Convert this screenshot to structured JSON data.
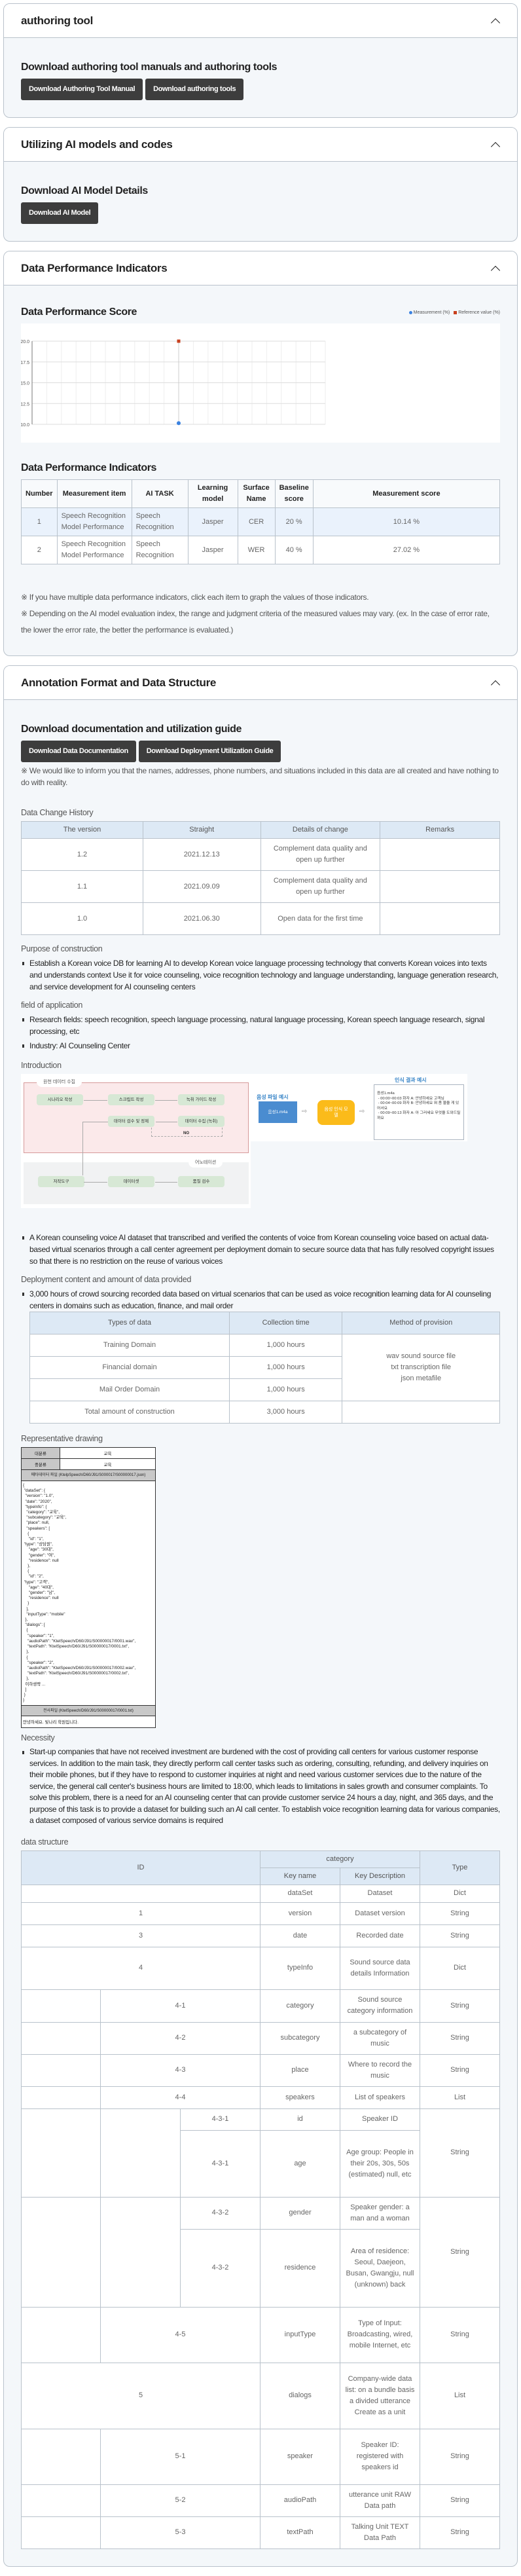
{
  "authoring": {
    "title": "authoring tool",
    "heading": "Download authoring tool manuals and authoring tools",
    "btn_manual": "Download Authoring Tool Manual",
    "btn_tools": "Download authoring tools"
  },
  "ai_models": {
    "title": "Utilizing AI models and codes",
    "heading": "Download AI Model Details",
    "btn_model": "Download AI Model"
  },
  "performance": {
    "title": "Data Performance Indicators",
    "score_heading": "Data Performance Score",
    "legend": {
      "measurement": "Measurement (%)",
      "reference": "Reference value (%)"
    },
    "table_heading": "Data Performance Indicators",
    "columns": [
      "Number",
      "Measurement item",
      "AI TASK",
      "Learning model",
      "Surface Name",
      "Baseline score",
      "Measurement score"
    ],
    "rows": [
      {
        "number": "1",
        "item": "Speech Recognition Model Performance",
        "task": "Speech Recognition",
        "model": "Jasper",
        "surface": "CER",
        "baseline": "20 %",
        "measured": "10.14 %"
      },
      {
        "number": "2",
        "item": "Speech Recognition Model Performance",
        "task": "Speech Recognition",
        "model": "Jasper",
        "surface": "WER",
        "baseline": "40 %",
        "measured": "27.02 %"
      }
    ],
    "note1": "※ If you have multiple data performance indicators, click each item to graph the values of those indicators.",
    "note2": "※ Depending on the AI model evaluation index, the range and judgment criteria of the measured values may vary. (ex. In the case of error rate, the lower the error rate, the better the performance is evaluated.)"
  },
  "chart_data": {
    "type": "scatter",
    "title": "Data Performance Score",
    "series": [
      {
        "name": "Measurement (%)",
        "values": [
          10.14
        ],
        "color": "#3b82e0",
        "marker": "circle"
      },
      {
        "name": "Reference value (%)",
        "values": [
          20
        ],
        "color": "#c8401e",
        "marker": "square"
      }
    ],
    "ylim": [
      10,
      20
    ],
    "yticks": [
      "20.0",
      "17.5",
      "15.0",
      "12.5",
      "10.0"
    ],
    "grid": true,
    "legend": "top-right"
  },
  "annotation": {
    "title": "Annotation Format and Data Structure",
    "heading": "Download documentation and utilization guide",
    "btn_doc": "Download Data Documentation",
    "btn_guide": "Download Deployment Utilization Guide",
    "disclaimer": "※ We would like to inform you that the names, addresses, phone numbers, and situations included in this data are all created and have nothing to do with reality.",
    "history_label": "Data Change History",
    "history_columns": [
      "The version",
      "Straight",
      "Details of change",
      "Remarks"
    ],
    "history": [
      {
        "version": "1.2",
        "date": "2021.12.13",
        "details": "Complement data quality and open up further",
        "remarks": ""
      },
      {
        "version": "1.1",
        "date": "2021.09.09",
        "details": "Complement data quality and open up further",
        "remarks": ""
      },
      {
        "version": "1.0",
        "date": "2021.06.30",
        "details": "Open data for the first time",
        "remarks": ""
      }
    ],
    "purpose_label": "Purpose of construction",
    "purpose": [
      "Establish a Korean voice DB for learning AI to develop Korean voice language processing technology that converts Korean voices into texts and understands context Use it for voice counseling, voice recognition technology and language understanding, language generation research, and service development for AI counseling centers"
    ],
    "application_label": "field of application",
    "application": [
      "Research fields: speech recognition, speech language processing, natural language processing, Korean speech language research, signal processing, etc",
      "Industry: AI Counseling Center"
    ],
    "intro_label": "Introduction",
    "diagram": {
      "zone1": "원천 데이터 수집",
      "zone2": "어노테이션",
      "steps": [
        "시나리오 작성",
        "스크립트 작성",
        "녹취 가이드 작성",
        "데이터 수집 (녹취)",
        "데이터 검수 및 정제",
        "저작도구",
        "데이터셋",
        "품질 검수"
      ],
      "no": "NO",
      "file_title": "음성 파일 예시",
      "file": "음성1.m4a",
      "model": "음성 인식 모델",
      "result_title": "인식 결과 예시",
      "result": "음성1.m4a\n - 00:00~00:03 화자 A: 안녕하세요 고객님\n - 00:04~00:09 화자 B: 안녕하세요 뭐 좀 물을 게 있어서요\n - 00:09~00:13 화자 A: 아 그러세요 무엇을 도와드릴까요"
    },
    "intro": [
      "A Korean counseling voice AI dataset that transcribed and verified the contents of voice from Korean counseling voice based on actual data-based virtual scenarios through a call center agreement per deployment domain to secure source data that has fully resolved copyright issues so that there is no restriction on the reuse of various voices"
    ],
    "deploy_label": "Deployment content and amount of data provided",
    "deploy": [
      "3,000 hours of crowd sourcing recorded data based on virtual scenarios that can be used as voice recognition learning data for AI counseling centers in domains such as education, finance, and mail order"
    ],
    "deploy_columns": [
      "Types of data",
      "Collection time",
      "Method of provision"
    ],
    "deploy_rows": [
      {
        "type": "Training Domain",
        "time": "1,000 hours"
      },
      {
        "type": "Financial domain",
        "time": "1,000 hours"
      },
      {
        "type": "Mail Order Domain",
        "time": "1,000 hours"
      },
      {
        "type": "Total amount of construction",
        "time": "3,000 hours"
      }
    ],
    "deploy_method": [
      "wav sound source file",
      "txt transcription file",
      "json metafile"
    ],
    "drawing_label": "Representative drawing",
    "drawing": {
      "k1": "대분류",
      "v1": "교육",
      "k2": "중분류",
      "v2": "교육",
      "meta_header": "메타데이터 파일 (KtelpSpeech/D60/J91/S000017/S00000017.json)",
      "json": "{\n \"dataSet\": {\n  \"version\": \"1.0\",\n  \"date\": \"2020\",\n  \"typeInfo\": {\n   \"category\": \"교육\",\n   \"subcategory\": \"교육\",\n   \"place\": null,\n   \"speakers\": [\n    {\n     \"id\": \"1\",\n \"type\": \"상담원\",\n     \"age\": \"30대\",\n     \"gender\": \"여\",\n     \"residence\": null\n    },\n    {\n     \"id\": \"2\",\n \"type\": \"고객\",\n     \"age\": \"40대\",\n     \"gender\": \"남\",\n     \"residence\": null\n    }\n   ],\n   \"inputType\": \"mobile\"\n  },\n  \"dialogs\": [\n   {\n    \"speaker\": \"1\",\n    \"audioPath\": \"KtelSpeech/D60/J91/S00000017/0001.wav\",\n    \"textPath\": \"KtelSpeech/D60/J91/S00000017/0001.txt\",\n   },\n   {\n    \"speaker\": \"2\",\n    \"audioPath\": \"KtelSpeech/D60/J91/S00000017/0002.wav\",\n    \"textPath\": \"KtelSpeech/D60/J91/S00000017/0002.txt\",\n   },\n  이하생략 ...\n  ]\n }\n}",
      "txt_header": "전사파일 (KtelSpeech/D60/J91/S00000017/0001.txt)",
      "txt": "안녕하세요. 빛나리 학원입니다."
    },
    "necessity_label": "Necessity",
    "necessity": [
      "Start-up companies that have not received investment are burdened with the cost of providing call centers for various customer response services. In addition to the main task, they directly perform call center tasks such as ordering, consulting, refunding, and delivery inquiries on their mobile phones, but if they have to respond to customer inquiries at night and need various customer services due to the nature of the service, the general call center's business hours are limited to 18:00, which leads to limitations in sales growth and consumer complaints. To solve this problem, there is a need for an AI counseling center that can provide customer service 24 hours a day, night, and 365 days, and the purpose of this task is to provide a dataset for building such an AI call center. To establish voice recognition learning data for various companies, a dataset composed of various service domains is required"
    ],
    "structure_label": "data structure",
    "structure_header": {
      "id": "ID",
      "category": "category",
      "key": "Key name",
      "desc": "Key Description",
      "type": "Type"
    },
    "structure": [
      {
        "id": "",
        "key": "dataSet",
        "desc": "Dataset",
        "type": "Dict"
      },
      {
        "id": "1",
        "key": "version",
        "desc": "Dataset version",
        "type": "String"
      },
      {
        "id": "3",
        "key": "date",
        "desc": "Recorded date",
        "type": "String"
      },
      {
        "id": "4",
        "key": "typeInfo",
        "desc": "Sound source data details Information",
        "type": "Dict"
      },
      {
        "id": "4-1",
        "key": "category",
        "desc": "Sound source category information",
        "type": "String"
      },
      {
        "id": "4-2",
        "key": "subcategory",
        "desc": "a subcategory of music",
        "type": "String"
      },
      {
        "id": "4-3",
        "key": "place",
        "desc": "Where to record the music",
        "type": "String"
      },
      {
        "id": "4-4",
        "key": "speakers",
        "desc": "List of speakers",
        "type": "List"
      },
      {
        "id": "4-3-1",
        "key": "id",
        "desc": "Speaker ID",
        "type": "String"
      },
      {
        "id": "4-3-1",
        "key": "age",
        "desc": "Age group: People in their 20s, 30s, 50s (estimated) null, etc"
      },
      {
        "id": "4-3-2",
        "key": "gender",
        "desc": "Speaker gender: a man and a woman",
        "type": "String"
      },
      {
        "id": "4-3-2",
        "key": "residence",
        "desc": "Area of residence: Seoul, Daejeon, Busan, Gwangju, null (unknown) back"
      },
      {
        "id": "4-5",
        "key": "inputType",
        "desc": "Type of Input: Broadcasting, wired, mobile Internet, etc",
        "type": "String"
      },
      {
        "id": "5",
        "key": "dialogs",
        "desc": "Company-wide data list: on a bundle basis a divided utterance Create as a unit",
        "type": "List"
      },
      {
        "id": "5-1",
        "key": "speaker",
        "desc": "Speaker ID: registered with speakers id",
        "type": "String"
      },
      {
        "id": "5-2",
        "key": "audioPath",
        "desc": "utterance unit RAW Data path",
        "type": "String"
      },
      {
        "id": "5-3",
        "key": "textPath",
        "desc": "Talking Unit TEXT Data Path",
        "type": "String"
      }
    ]
  }
}
